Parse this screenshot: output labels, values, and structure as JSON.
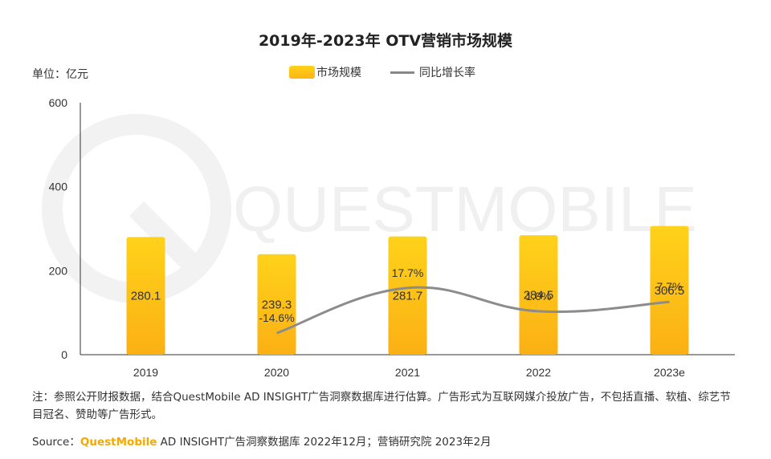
{
  "chart_data": {
    "type": "bar",
    "title": "2019年-2023年 OTV营销市场规模",
    "unit_label": "单位：亿元",
    "categories": [
      "2019",
      "2020",
      "2021",
      "2022",
      "2023e"
    ],
    "series": [
      {
        "name": "市场规模",
        "type": "bar",
        "values": [
          280.1,
          239.3,
          281.7,
          284.5,
          306.5
        ],
        "value_labels": [
          "280.1",
          "239.3",
          "281.7",
          "284.5",
          "306.5"
        ],
        "color": "#fcc214"
      },
      {
        "name": "同比增长率",
        "type": "line",
        "values": [
          null,
          -14.6,
          17.7,
          1.0,
          7.7
        ],
        "value_labels": [
          "",
          "-14.6%",
          "17.7%",
          "1.0%",
          "7.7%"
        ],
        "color": "#8c8c8c"
      }
    ],
    "y_ticks": [
      "600",
      "400",
      "200",
      "0"
    ],
    "ylim": [
      0,
      600
    ],
    "legend_position": "top-center",
    "grid": false
  },
  "watermark": "QUESTMOBILE",
  "note": "注：参照公开财报数据，结合QuestMobile AD INSIGHT广告洞察数据库进行估算。广告形式为互联网媒介投放广告，不包括直播、软植、综艺节目冠名、赞助等广告形式。",
  "source": {
    "prefix": "Source：",
    "brand": "QuestMobile",
    "rest": " AD INSIGHT广告洞察数据库 2022年12月；营销研究院 2023年2月"
  }
}
